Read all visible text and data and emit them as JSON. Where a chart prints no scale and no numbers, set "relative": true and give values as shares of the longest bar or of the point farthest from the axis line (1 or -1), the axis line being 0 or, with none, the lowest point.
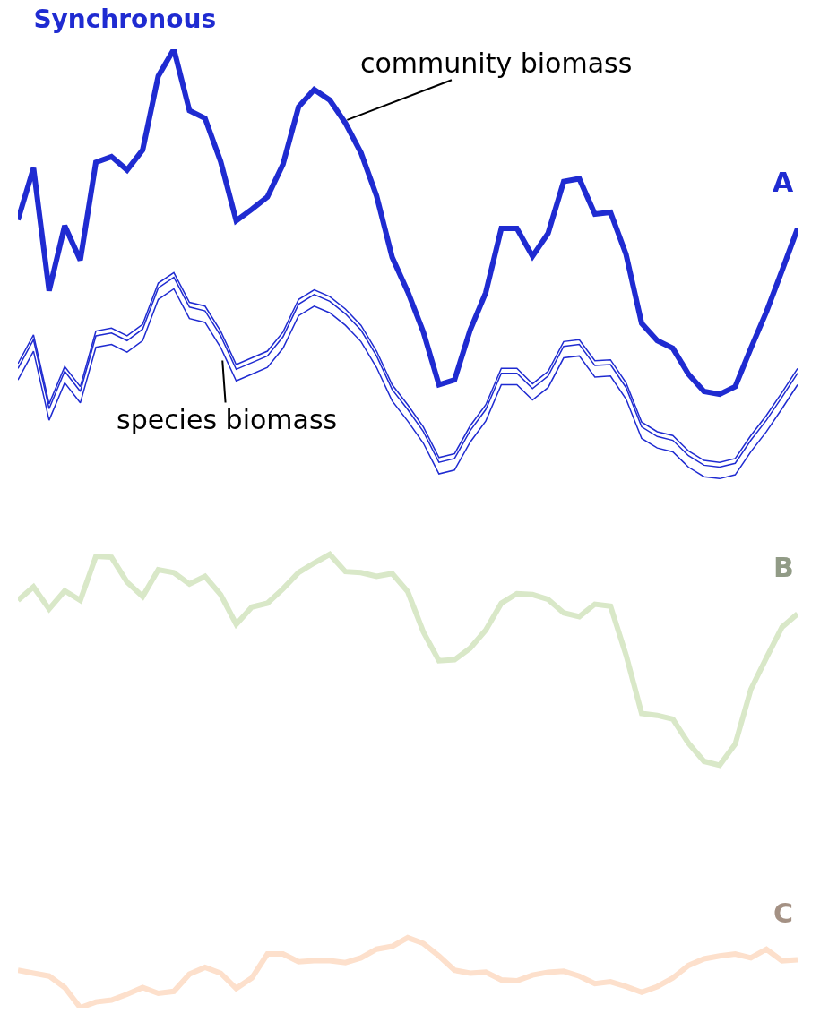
{
  "chart_data": {
    "type": "line",
    "title": "Synchronous",
    "relative": true,
    "legend": false,
    "annotations": [
      "community biomass",
      "species biomass"
    ],
    "categories": [
      null,
      null,
      null,
      null,
      null,
      null,
      null,
      null,
      null,
      null,
      null,
      null,
      null,
      null,
      null,
      null,
      null,
      null,
      null,
      null,
      null,
      null,
      null,
      null,
      null,
      null,
      null,
      null,
      null,
      null,
      null,
      null,
      null,
      null,
      null,
      null,
      null,
      null,
      null,
      null,
      null,
      null,
      null,
      null,
      null,
      null,
      null,
      null,
      null,
      null,
      null
    ],
    "series": [
      {
        "name": "A",
        "color": "#1f2bd1",
        "values": [
          0.822,
          0.876,
          0.748,
          0.816,
          0.78,
          0.882,
          0.888,
          0.874,
          0.895,
          0.972,
          1.0,
          0.936,
          0.928,
          0.883,
          0.821,
          0.833,
          0.846,
          0.88,
          0.94,
          0.958,
          0.947,
          0.923,
          0.892,
          0.847,
          0.783,
          0.747,
          0.705,
          0.65,
          0.655,
          0.707,
          0.746,
          0.813,
          0.813,
          0.784,
          0.808,
          0.862,
          0.865,
          0.828,
          0.83,
          0.786,
          0.714,
          0.696,
          0.688,
          0.661,
          0.643,
          0.64,
          0.648,
          0.688,
          0.726,
          0.769,
          0.813
        ]
      },
      {
        "color": "#1f2bd1",
        "values": [
          0.672,
          0.702,
          0.63,
          0.669,
          0.648,
          0.706,
          0.709,
          0.701,
          0.713,
          0.756,
          0.767,
          0.736,
          0.732,
          0.706,
          0.671,
          0.678,
          0.685,
          0.705,
          0.739,
          0.749,
          0.742,
          0.729,
          0.712,
          0.685,
          0.65,
          0.629,
          0.606,
          0.574,
          0.578,
          0.607,
          0.629,
          0.667,
          0.667,
          0.651,
          0.664,
          0.695,
          0.697,
          0.675,
          0.676,
          0.652,
          0.611,
          0.601,
          0.597,
          0.581,
          0.571,
          0.569,
          0.573,
          0.597,
          0.618,
          0.642,
          0.667
        ]
      },
      {
        "color": "#1f2bd1",
        "values": [
          0.667,
          0.697,
          0.625,
          0.664,
          0.643,
          0.701,
          0.704,
          0.696,
          0.708,
          0.751,
          0.762,
          0.731,
          0.727,
          0.701,
          0.666,
          0.673,
          0.68,
          0.7,
          0.734,
          0.744,
          0.737,
          0.724,
          0.707,
          0.68,
          0.645,
          0.624,
          0.601,
          0.569,
          0.573,
          0.602,
          0.624,
          0.662,
          0.662,
          0.646,
          0.659,
          0.69,
          0.692,
          0.67,
          0.671,
          0.647,
          0.606,
          0.596,
          0.592,
          0.576,
          0.566,
          0.564,
          0.568,
          0.592,
          0.613,
          0.637,
          0.662
        ]
      },
      {
        "color": "#1f2bd1",
        "values": [
          0.655,
          0.685,
          0.613,
          0.652,
          0.631,
          0.689,
          0.692,
          0.684,
          0.696,
          0.739,
          0.75,
          0.719,
          0.715,
          0.689,
          0.654,
          0.661,
          0.668,
          0.688,
          0.722,
          0.732,
          0.725,
          0.712,
          0.695,
          0.668,
          0.633,
          0.612,
          0.589,
          0.557,
          0.561,
          0.59,
          0.612,
          0.65,
          0.65,
          0.634,
          0.647,
          0.678,
          0.68,
          0.658,
          0.659,
          0.635,
          0.594,
          0.584,
          0.58,
          0.564,
          0.554,
          0.552,
          0.556,
          0.58,
          0.601,
          0.625,
          0.65
        ]
      },
      {
        "name": "B",
        "color": "#d9e8c8",
        "values": [
          0.425,
          0.439,
          0.416,
          0.435,
          0.425,
          0.471,
          0.47,
          0.444,
          0.429,
          0.457,
          0.454,
          0.442,
          0.45,
          0.431,
          0.4,
          0.418,
          0.422,
          0.437,
          0.454,
          0.464,
          0.473,
          0.455,
          0.454,
          0.45,
          0.453,
          0.434,
          0.392,
          0.362,
          0.363,
          0.375,
          0.394,
          0.422,
          0.432,
          0.431,
          0.426,
          0.412,
          0.408,
          0.421,
          0.419,
          0.368,
          0.307,
          0.305,
          0.301,
          0.276,
          0.257,
          0.253,
          0.275,
          0.332,
          0.365,
          0.397,
          0.411
        ]
      },
      {
        "name": "C",
        "color": "#fde0cc",
        "values": [
          0.039,
          0.036,
          0.033,
          0.021,
          0.0,
          0.006,
          0.008,
          0.014,
          0.021,
          0.015,
          0.017,
          0.035,
          0.042,
          0.036,
          0.02,
          0.031,
          0.056,
          0.056,
          0.048,
          0.049,
          0.049,
          0.047,
          0.052,
          0.061,
          0.064,
          0.073,
          0.067,
          0.054,
          0.039,
          0.036,
          0.037,
          0.029,
          0.028,
          0.034,
          0.037,
          0.038,
          0.033,
          0.025,
          0.027,
          0.022,
          0.016,
          0.022,
          0.031,
          0.044,
          0.051,
          0.054,
          0.056,
          0.052,
          0.061,
          0.049,
          0.05
        ]
      }
    ]
  }
}
